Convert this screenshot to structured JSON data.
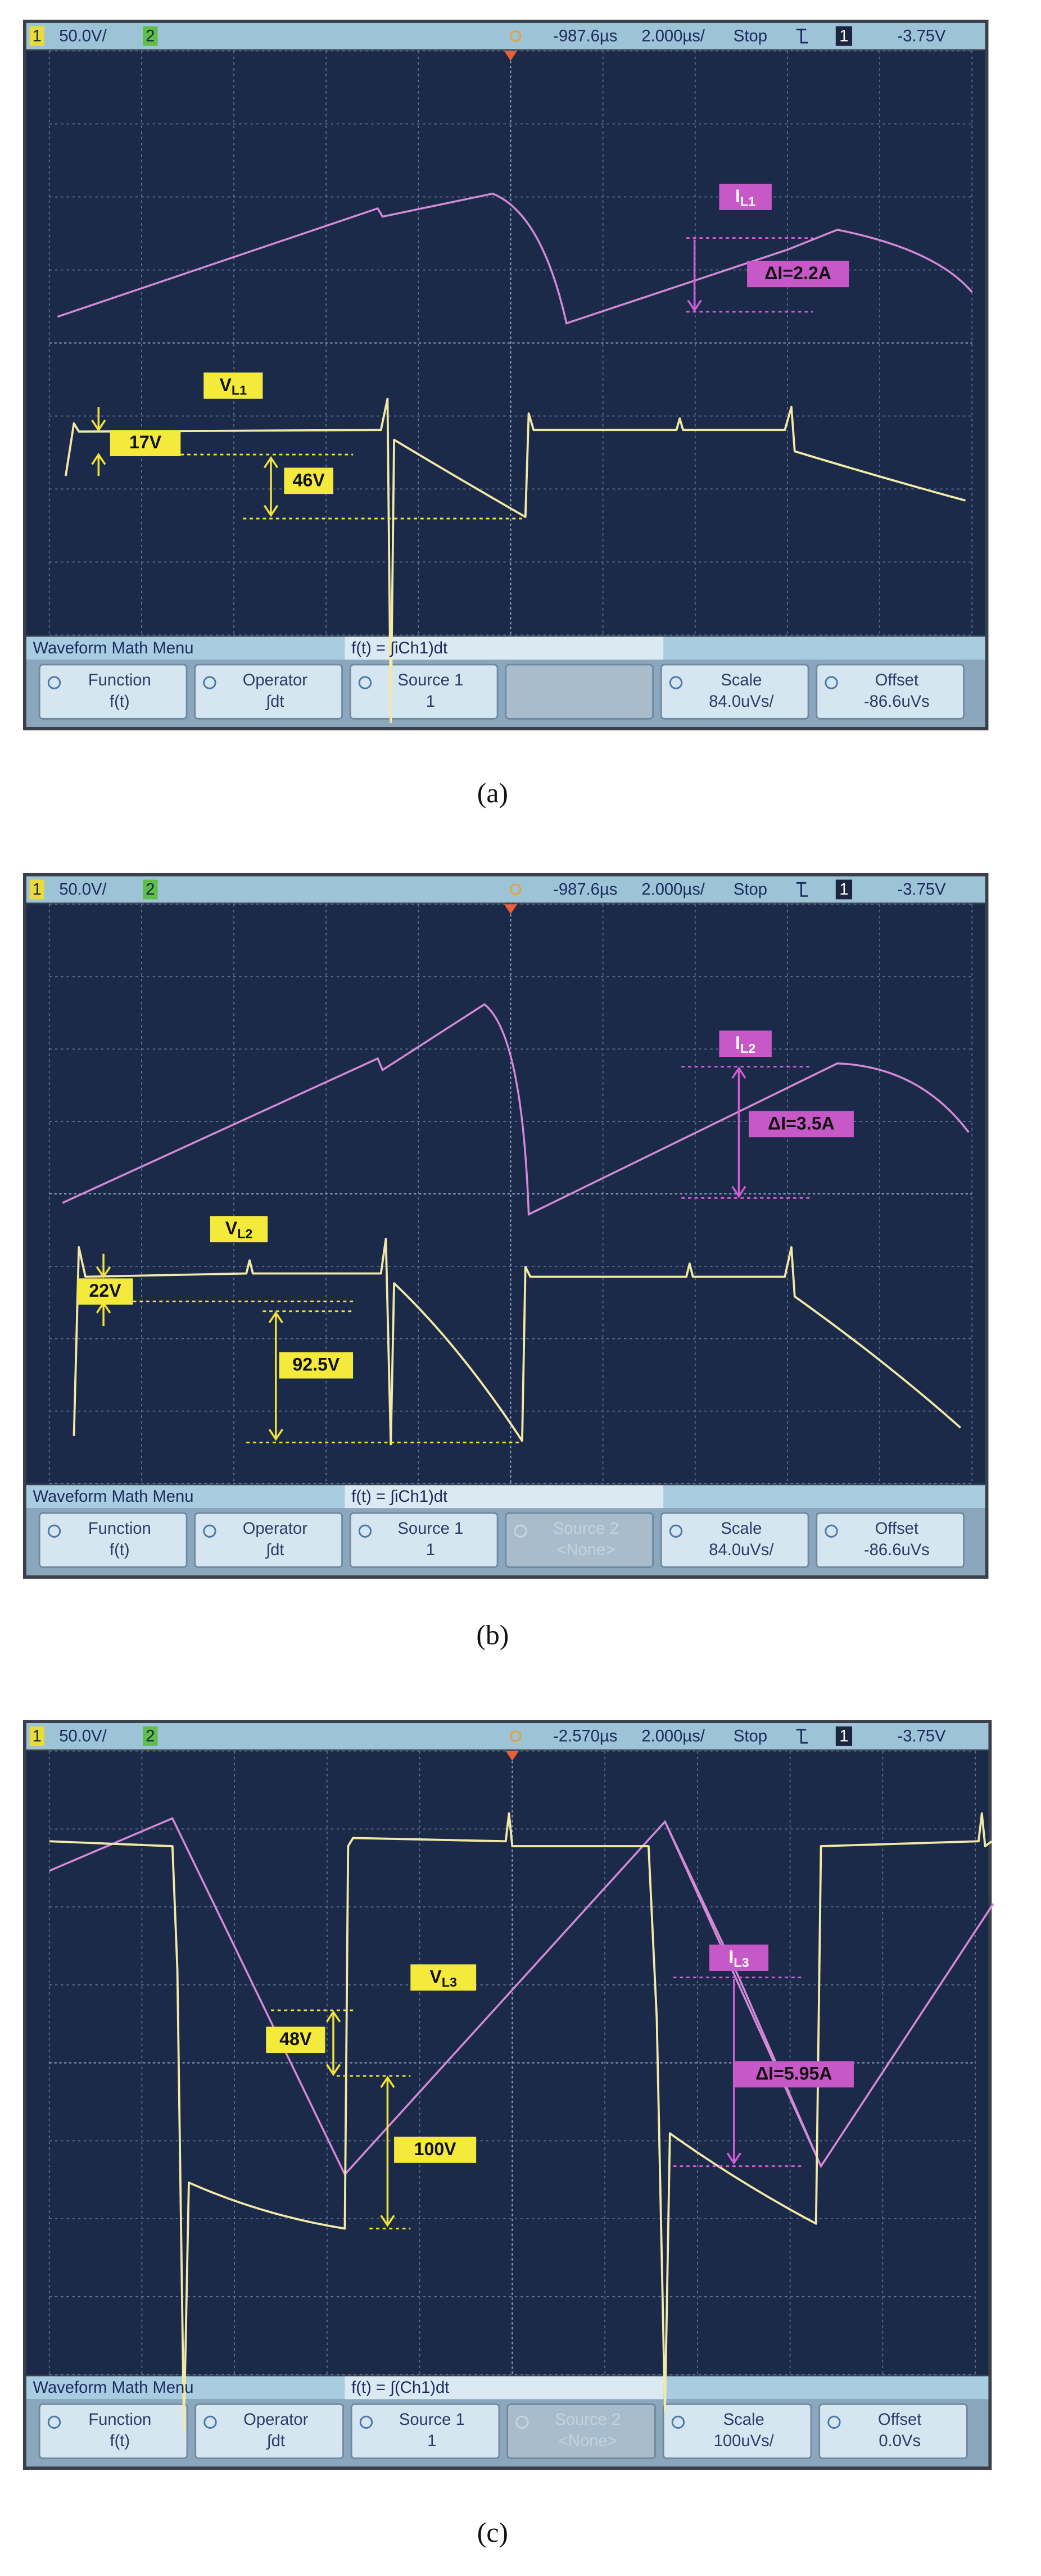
{
  "panels": [
    {
      "status": {
        "ch1": "1",
        "scale": "50.0V/",
        "ch2": "2",
        "delay": "-987.6µs",
        "timebase": "2.000µs/",
        "run": "Stop",
        "trigger_source": "1",
        "level": "-3.75V"
      },
      "annotations": [
        {
          "text": "I",
          "sub": "L1",
          "color": "#c658c8"
        },
        {
          "text": "ΔI=2.2A",
          "color": "#c658c8"
        },
        {
          "text": "V",
          "sub": "L1",
          "color": "#f3ea3c"
        },
        {
          "text": "17V",
          "color": "#f3ea3c"
        },
        {
          "text": "46V",
          "color": "#f3ea3c"
        }
      ],
      "menu": {
        "title": "Waveform Math Menu",
        "formula": "f(t) = ∫iCh1)dt",
        "buttons": [
          {
            "name": "Function",
            "value": "f(t)"
          },
          {
            "name": "Operator",
            "value": "∫dt"
          },
          {
            "name": "Source 1",
            "value": "1"
          },
          {
            "disabled": true
          },
          {
            "name": "Scale",
            "value": "84.0uVs/"
          },
          {
            "name": "Offset",
            "value": "-86.6uVs"
          }
        ]
      },
      "caption": "(a)"
    },
    {
      "status": {
        "ch1": "1",
        "scale": "50.0V/",
        "ch2": "2",
        "delay": "-987.6µs",
        "timebase": "2.000µs/",
        "run": "Stop",
        "trigger_source": "1",
        "level": "-3.75V"
      },
      "annotations": [
        {
          "text": "I",
          "sub": "L2",
          "color": "#c658c8"
        },
        {
          "text": "ΔI=3.5A",
          "color": "#c658c8"
        },
        {
          "text": "V",
          "sub": "L2",
          "color": "#f3ea3c"
        },
        {
          "text": "22V",
          "color": "#f3ea3c"
        },
        {
          "text": "92.5V",
          "color": "#f3ea3c"
        }
      ],
      "menu": {
        "title": "Waveform Math Menu",
        "formula": "f(t) = ∫iCh1)dt",
        "buttons": [
          {
            "name": "Function",
            "value": "f(t)"
          },
          {
            "name": "Operator",
            "value": "∫dt"
          },
          {
            "name": "Source 1",
            "value": "1"
          },
          {
            "name": "Source 2",
            "value": "<None>",
            "disabled": true
          },
          {
            "name": "Scale",
            "value": "84.0uVs/"
          },
          {
            "name": "Offset",
            "value": "-86.6uVs"
          }
        ]
      },
      "caption": "(b)"
    },
    {
      "status": {
        "ch1": "1",
        "scale": "50.0V/",
        "ch2": "2",
        "delay": "-2.570µs",
        "timebase": "2.000µs/",
        "run": "Stop",
        "trigger_source": "1",
        "level": "-3.75V"
      },
      "annotations": [
        {
          "text": "I",
          "sub": "L3",
          "color": "#c658c8"
        },
        {
          "text": "ΔI=5.95A",
          "color": "#c658c8"
        },
        {
          "text": "V",
          "sub": "L3",
          "color": "#f3ea3c"
        },
        {
          "text": "48V",
          "color": "#f3ea3c"
        },
        {
          "text": "100V",
          "color": "#f3ea3c"
        }
      ],
      "menu": {
        "title": "Waveform Math Menu",
        "formula": "f(t) = ∫(Ch1)dt",
        "buttons": [
          {
            "name": "Function",
            "value": "f(t)"
          },
          {
            "name": "Operator",
            "value": "∫dt"
          },
          {
            "name": "Source 1",
            "value": "1"
          },
          {
            "name": "Source 2",
            "value": "<None>",
            "disabled": true
          },
          {
            "name": "Scale",
            "value": "100uVs/"
          },
          {
            "name": "Offset",
            "value": "0.0Vs"
          }
        ]
      },
      "caption": "(c)"
    }
  ]
}
